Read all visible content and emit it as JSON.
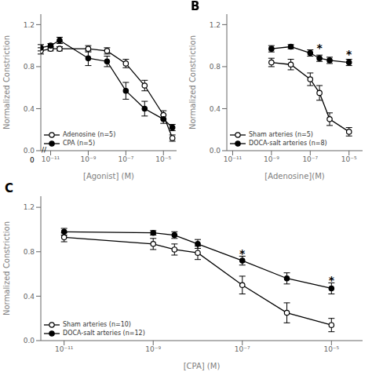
{
  "chart_data": [
    {
      "type": "line",
      "xlabel": "[Agonist] (M)",
      "ylabel": "Normalized Constriction",
      "log": "x",
      "xlim": [
        3e-12,
        5e-05
      ],
      "ylim": [
        0.0,
        1.3
      ],
      "xticks": [
        {
          "value": 1e-11,
          "label": "10⁻¹¹"
        },
        {
          "value": 1e-09,
          "label": "10⁻⁹"
        },
        {
          "value": 1e-07,
          "label": "10⁻⁷"
        },
        {
          "value": 1e-05,
          "label": "10⁻⁵"
        }
      ],
      "yticks": [
        {
          "value": 0.0,
          "label": "0.0"
        },
        0.4,
        0.8,
        1.2
      ],
      "legend": "lower left",
      "annotations": [
        {
          "text": "0"
        },
        {
          "text": "//"
        }
      ],
      "x": [
        3e-12,
        1e-11,
        3e-11,
        1e-09,
        1e-08,
        1e-07,
        1e-06,
        1e-05,
        3e-05
      ],
      "series": [
        {
          "name": "Adenosine (n=5)",
          "color": "#000000",
          "marker": "circle_open",
          "values": [
            0.95,
            0.97,
            0.97,
            0.97,
            0.95,
            0.83,
            0.62,
            0.34,
            0.12
          ],
          "error": [
            0.03,
            0.02,
            0.02,
            0.03,
            0.03,
            0.04,
            0.05,
            0.04,
            0.03
          ]
        },
        {
          "name": "CPA (n=5)",
          "color": "#000000",
          "marker": "circle",
          "values": [
            0.98,
            1.0,
            1.05,
            0.88,
            0.85,
            0.57,
            0.4,
            0.3,
            0.22
          ],
          "error": [
            0.03,
            0.02,
            0.03,
            0.07,
            0.05,
            0.08,
            0.07,
            0.04,
            0.03
          ]
        }
      ]
    },
    {
      "type": "line",
      "title": "B",
      "xlabel": "[Adenosine](M)",
      "ylabel": "Normalized Constriction",
      "log": "x",
      "xlim": [
        5e-12,
        5e-05
      ],
      "ylim": [
        0.0,
        1.3
      ],
      "xticks": [
        {
          "value": 1e-11,
          "label": "10⁻¹¹"
        },
        {
          "value": 1e-09,
          "label": "10⁻⁹"
        },
        {
          "value": 1e-07,
          "label": "10⁻⁷"
        },
        {
          "value": 1e-05,
          "label": "10⁻⁵"
        }
      ],
      "yticks": [
        {
          "value": 0.0,
          "label": "0.0"
        },
        0.4,
        0.8,
        1.2
      ],
      "legend": "lower left",
      "annotations": [
        {
          "text": "*",
          "x": 3e-07,
          "y": 0.97
        },
        {
          "text": "*",
          "x": 1e-05,
          "y": 0.91
        }
      ],
      "x": [
        1e-09,
        1e-08,
        1e-07,
        3e-07,
        1e-06,
        1e-05
      ],
      "series": [
        {
          "name": "Sham arteries (n=5)",
          "color": "#000000",
          "marker": "circle_open",
          "values": [
            0.84,
            0.82,
            0.68,
            0.55,
            0.3,
            0.18
          ],
          "error": [
            0.04,
            0.05,
            0.06,
            0.07,
            0.06,
            0.04
          ]
        },
        {
          "name": "DOCA-salt arteries (n=8)",
          "color": "#000000",
          "marker": "circle",
          "values": [
            0.97,
            0.99,
            0.93,
            0.88,
            0.86,
            0.84
          ],
          "error": [
            0.03,
            0.02,
            0.03,
            0.03,
            0.03,
            0.03
          ]
        }
      ]
    },
    {
      "type": "line",
      "title": "C",
      "xlabel": "[CPA] (M)",
      "ylabel": "Normalized Constriction",
      "log": "x",
      "xlim": [
        3e-12,
        5e-05
      ],
      "ylim": [
        0.0,
        1.3
      ],
      "xticks": [
        {
          "value": 1e-11,
          "label": "10⁻¹¹"
        },
        {
          "value": 1e-09,
          "label": "10⁻⁹"
        },
        {
          "value": 1e-07,
          "label": "10⁻⁷"
        },
        {
          "value": 1e-05,
          "label": "10⁻⁵"
        }
      ],
      "yticks": [
        {
          "value": 0.0,
          "label": "0.0"
        },
        0.4,
        0.8,
        1.2
      ],
      "legend": "lower left",
      "annotations": [
        {
          "text": "*",
          "x": 1e-07,
          "y": 0.78
        },
        {
          "text": "*",
          "x": 1e-05,
          "y": 0.54
        }
      ],
      "x": [
        1e-11,
        1e-09,
        3e-09,
        1e-08,
        1e-07,
        1e-06,
        1e-05
      ],
      "series": [
        {
          "name": "Sham arteries (n=10)",
          "color": "#000000",
          "marker": "circle_open",
          "values": [
            0.93,
            0.87,
            0.82,
            0.79,
            0.5,
            0.25,
            0.14
          ],
          "error": [
            0.04,
            0.05,
            0.05,
            0.06,
            0.08,
            0.09,
            0.06
          ]
        },
        {
          "name": "DOCA-salt arteries (n=12)",
          "color": "#000000",
          "marker": "circle",
          "values": [
            0.98,
            0.97,
            0.95,
            0.87,
            0.72,
            0.56,
            0.47
          ],
          "error": [
            0.03,
            0.02,
            0.03,
            0.04,
            0.04,
            0.05,
            0.05
          ]
        }
      ]
    }
  ]
}
